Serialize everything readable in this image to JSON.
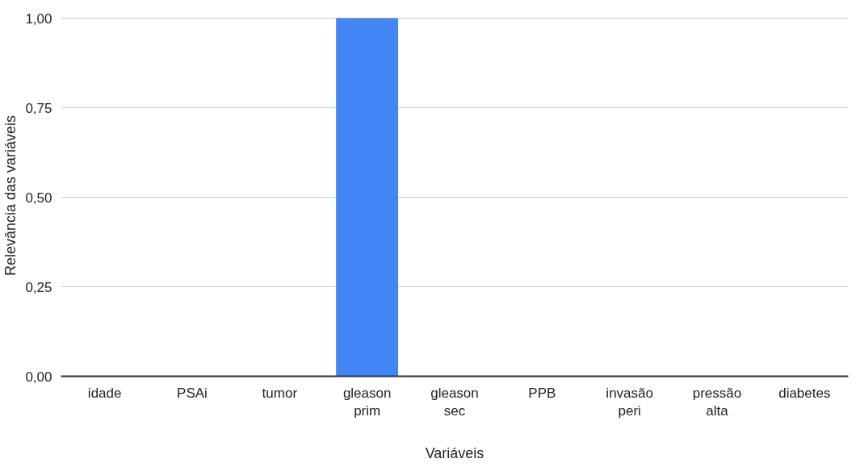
{
  "chart_data": {
    "type": "bar",
    "xlabel": "Variáveis",
    "ylabel": "Relevância das variáveis",
    "categories": [
      "idade",
      "PSAi",
      "tumor",
      "gleason prim",
      "gleason sec",
      "PPB",
      "invasão peri",
      "pressão alta",
      "diabetes"
    ],
    "values": [
      0,
      0,
      0,
      1,
      0,
      0,
      0,
      0,
      0
    ],
    "color": "#4285f4",
    "ylim": [
      0,
      1
    ],
    "yticks": [
      {
        "value": 0,
        "label": "0,00"
      },
      {
        "value": 0.25,
        "label": "0,25"
      },
      {
        "value": 0.5,
        "label": "0,50"
      },
      {
        "value": 0.75,
        "label": "0,75"
      },
      {
        "value": 1,
        "label": "1,00"
      }
    ],
    "grid": "y"
  }
}
